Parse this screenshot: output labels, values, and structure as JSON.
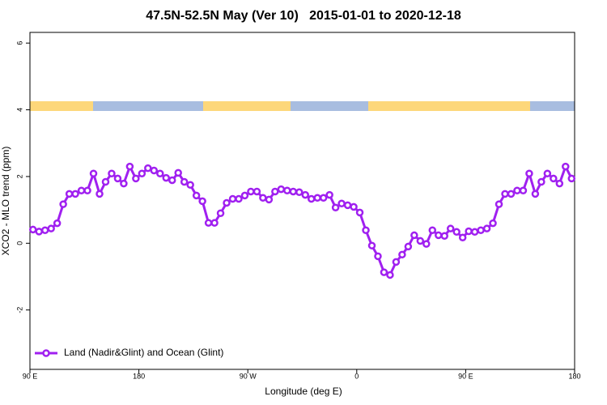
{
  "chart_data": {
    "type": "line",
    "title": "47.5N-52.5N May (Ver 10)   2015-01-01 to 2020-12-18",
    "x_label": "Longitude (deg E)",
    "y_label": "XCO2 - MLO trend (ppm)",
    "x": [
      92.5,
      97.5,
      102.5,
      107.5,
      112.5,
      117.5,
      122.5,
      127.5,
      132.5,
      137.5,
      142.5,
      147.5,
      152.5,
      157.5,
      162.5,
      167.5,
      172.5,
      177.5,
      182.5,
      187.5,
      192.5,
      197.5,
      202.5,
      207.5,
      212.5,
      217.5,
      222.5,
      227.5,
      232.5,
      237.5,
      242.5,
      247.5,
      252.5,
      257.5,
      262.5,
      267.5,
      272.5,
      277.5,
      282.5,
      287.5,
      292.5,
      297.5,
      302.5,
      307.5,
      312.5,
      317.5,
      322.5,
      327.5,
      332.5,
      337.5,
      342.5,
      347.5,
      352.5,
      357.5,
      362.5,
      367.5,
      372.5,
      377.5,
      382.5,
      387.5,
      392.5,
      397.5,
      402.5,
      407.5,
      412.5,
      417.5,
      422.5,
      427.5,
      432.5,
      437.5,
      442.5,
      447.5,
      452.5,
      457.5,
      462.5,
      467.5,
      472.5,
      477.5,
      482.5,
      487.5,
      492.5,
      497.5,
      502.5,
      507.5,
      512.5,
      517.5,
      522.5,
      527.5,
      532.5,
      537.5
    ],
    "series": [
      {
        "name": "Land (Nadir&Glint) and Ocean (Glint)",
        "color": "#a020f0",
        "values": [
          0.41,
          0.35,
          0.39,
          0.44,
          0.6,
          1.17,
          1.48,
          1.48,
          1.58,
          1.58,
          2.09,
          1.48,
          1.84,
          2.09,
          1.94,
          1.79,
          2.3,
          1.94,
          2.09,
          2.25,
          2.18,
          2.09,
          1.96,
          1.89,
          2.11,
          1.84,
          1.75,
          1.43,
          1.26,
          0.61,
          0.61,
          0.9,
          1.21,
          1.33,
          1.33,
          1.43,
          1.55,
          1.55,
          1.36,
          1.31,
          1.55,
          1.62,
          1.58,
          1.55,
          1.53,
          1.45,
          1.33,
          1.36,
          1.36,
          1.45,
          1.07,
          1.19,
          1.14,
          1.09,
          0.92,
          0.39,
          -0.07,
          -0.39,
          -0.87,
          -0.95,
          -0.56,
          -0.34,
          -0.1,
          0.24,
          0.07,
          -0.02,
          0.39,
          0.24,
          0.22,
          0.44,
          0.34,
          0.17,
          0.36,
          0.34,
          0.39,
          0.44,
          0.6,
          1.17,
          1.48,
          1.48,
          1.58,
          1.58,
          2.09,
          1.48,
          1.84,
          2.09,
          1.94,
          1.79,
          2.3,
          1.94
        ]
      }
    ],
    "xlim": [
      90,
      540
    ],
    "xticks": [
      {
        "value": 90,
        "label": "90 E"
      },
      180,
      {
        "value": 270,
        "label": "90 W"
      },
      {
        "value": 360,
        "label": "0"
      },
      {
        "value": 450,
        "label": "90 E"
      },
      180
    ],
    "ylim": [
      -3.78,
      6.32
    ],
    "yticks": [
      -2,
      0,
      2,
      4,
      6
    ],
    "legend": "bottom-left"
  }
}
